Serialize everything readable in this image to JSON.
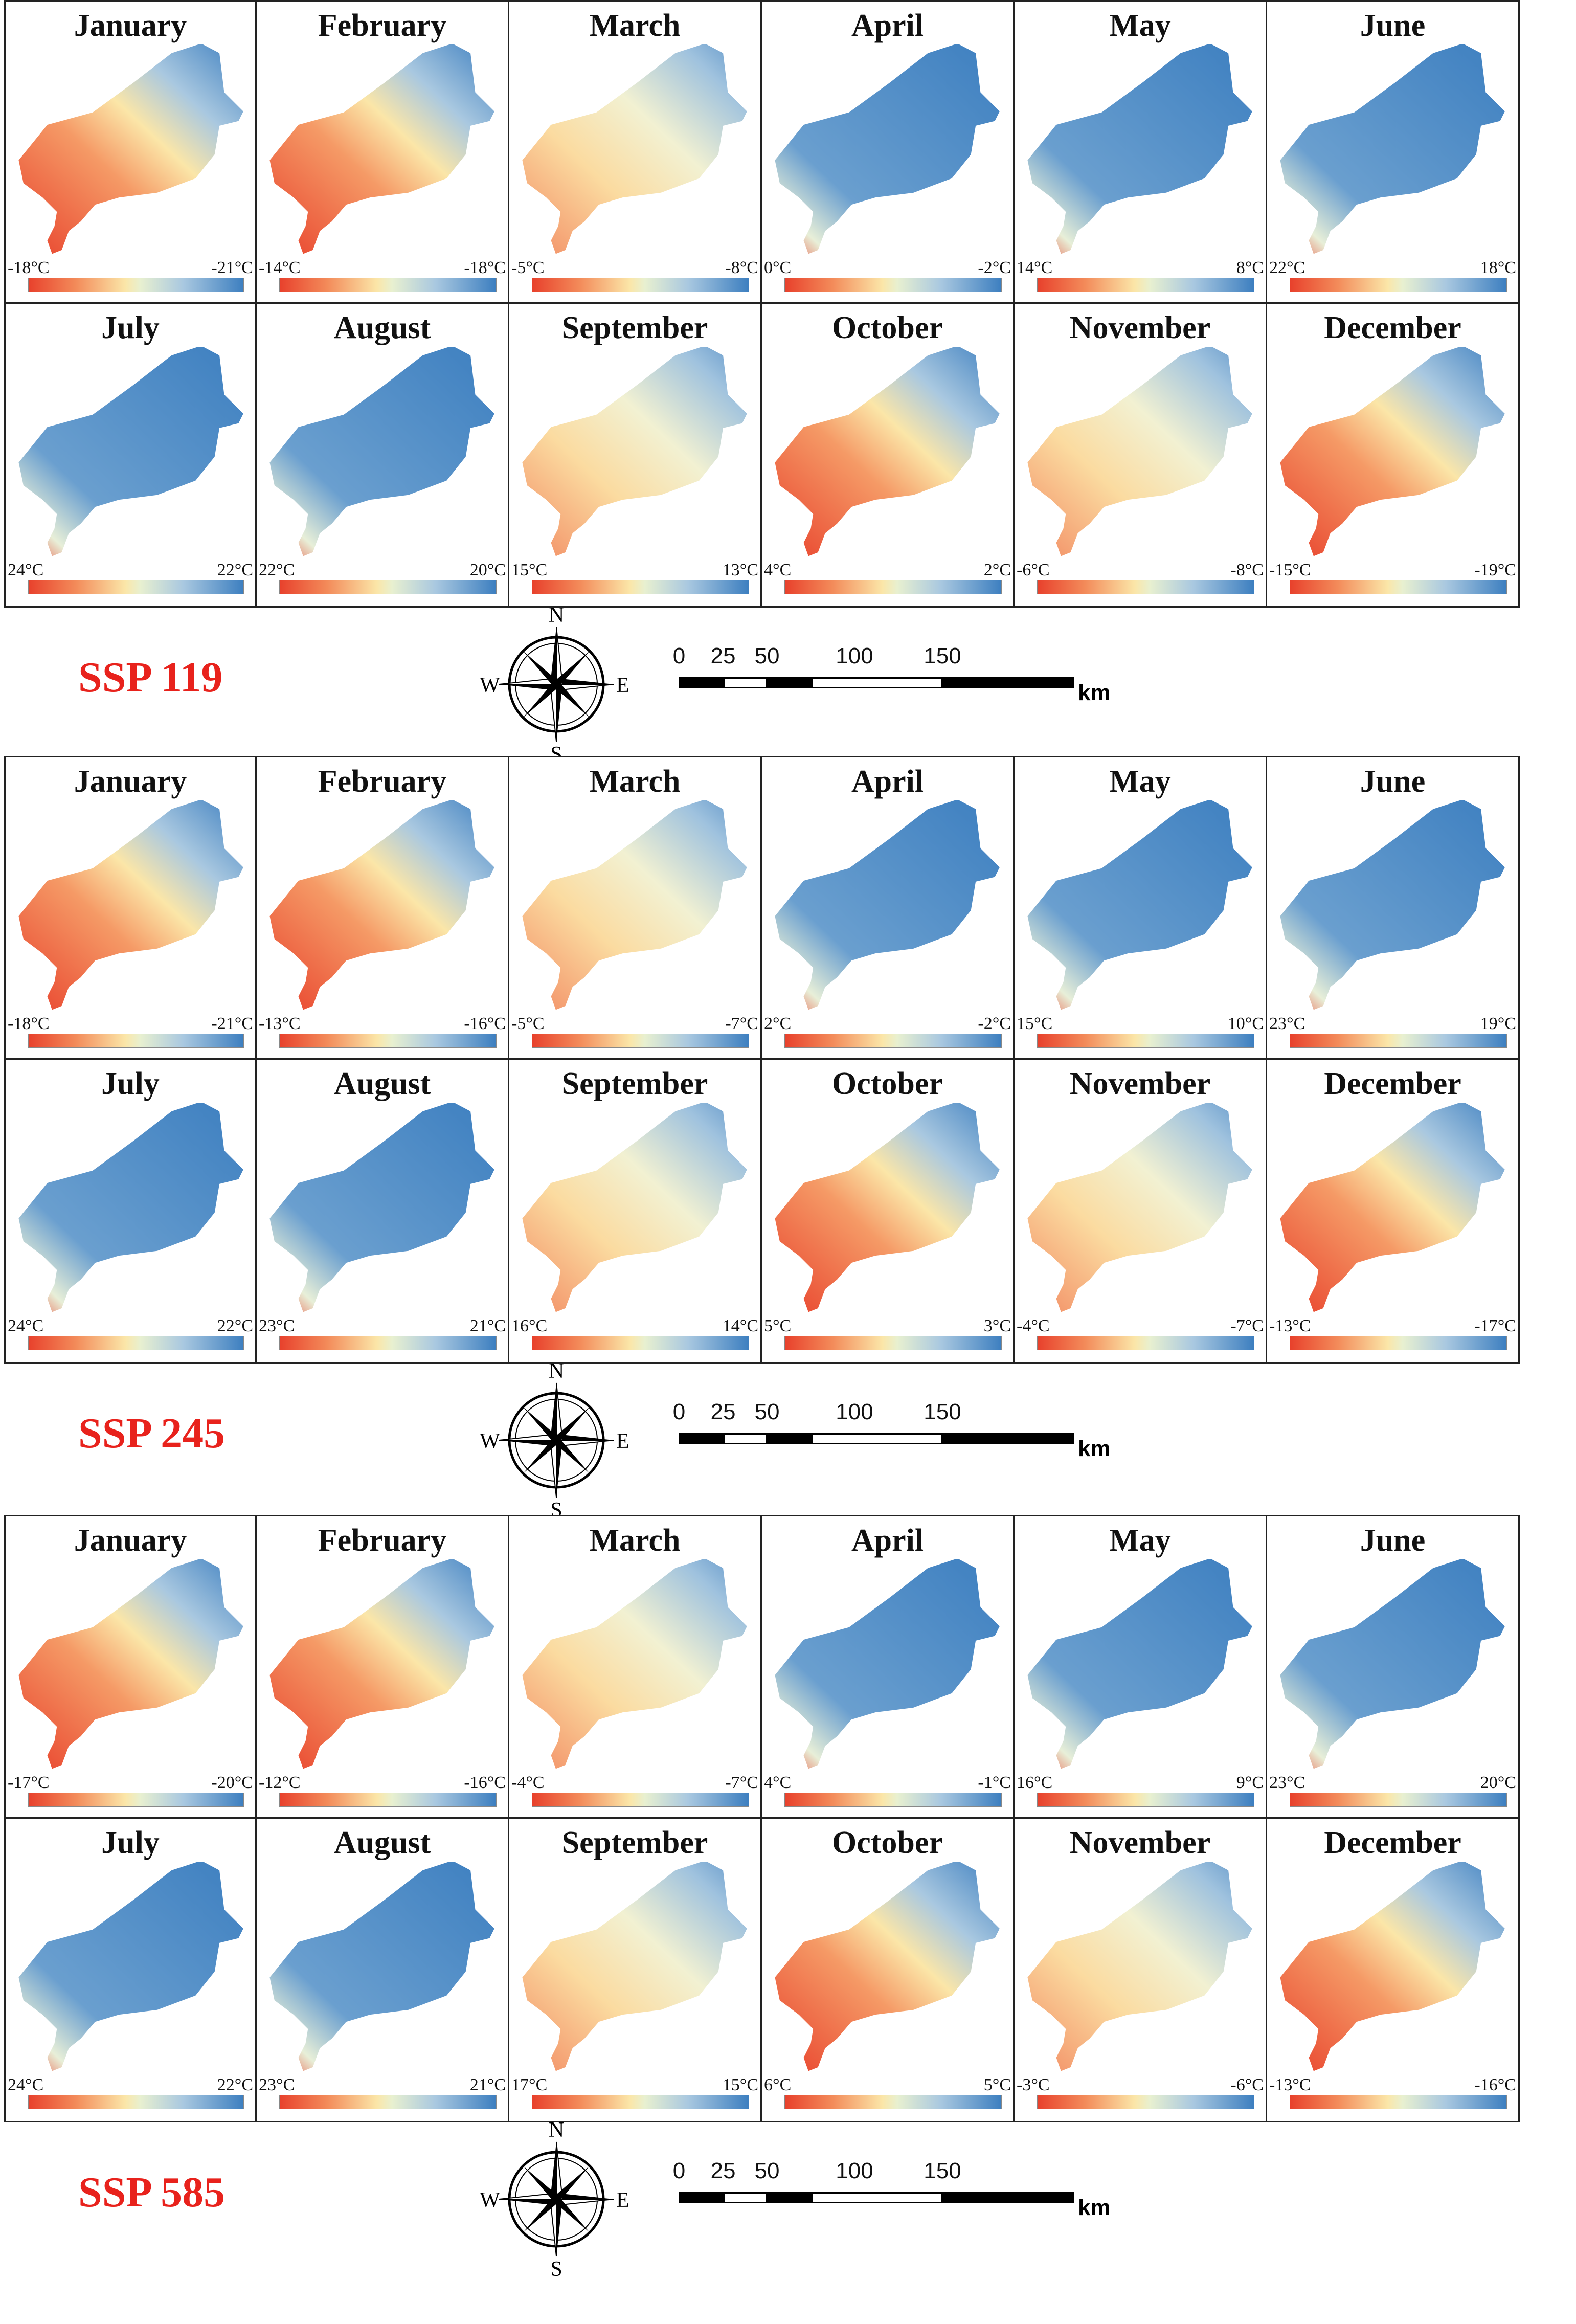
{
  "months": [
    "January",
    "February",
    "March",
    "April",
    "May",
    "June",
    "July",
    "August",
    "September",
    "October",
    "November",
    "December"
  ],
  "scale": {
    "ticks": [
      "0",
      "25",
      "50",
      "100",
      "150"
    ],
    "unit": "km"
  },
  "compass": {
    "north": "N",
    "south": "S",
    "east": "E",
    "west": "W"
  },
  "scenarios": [
    {
      "title": "SSP 119",
      "ranges": [
        [
          "-18°C",
          "-21°C"
        ],
        [
          "-14°C",
          "-18°C"
        ],
        [
          "-5°C",
          "-8°C"
        ],
        [
          "0°C",
          "-2°C"
        ],
        [
          "14°C",
          "8°C"
        ],
        [
          "22°C",
          "18°C"
        ],
        [
          "24°C",
          "22°C"
        ],
        [
          "22°C",
          "20°C"
        ],
        [
          "15°C",
          "13°C"
        ],
        [
          "4°C",
          "2°C"
        ],
        [
          "-6°C",
          "-8°C"
        ],
        [
          "-15°C",
          "-19°C"
        ]
      ]
    },
    {
      "title": "SSP 245",
      "ranges": [
        [
          "-18°C",
          "-21°C"
        ],
        [
          "-13°C",
          "-16°C"
        ],
        [
          "-5°C",
          "-7°C"
        ],
        [
          "2°C",
          "-2°C"
        ],
        [
          "15°C",
          "10°C"
        ],
        [
          "23°C",
          "19°C"
        ],
        [
          "24°C",
          "22°C"
        ],
        [
          "23°C",
          "21°C"
        ],
        [
          "16°C",
          "14°C"
        ],
        [
          "5°C",
          "3°C"
        ],
        [
          "-4°C",
          "-7°C"
        ],
        [
          "-13°C",
          "-17°C"
        ]
      ]
    },
    {
      "title": "SSP 585",
      "ranges": [
        [
          "-17°C",
          "-20°C"
        ],
        [
          "-12°C",
          "-16°C"
        ],
        [
          "-4°C",
          "-7°C"
        ],
        [
          "4°C",
          "-1°C"
        ],
        [
          "16°C",
          "9°C"
        ],
        [
          "23°C",
          "20°C"
        ],
        [
          "24°C",
          "22°C"
        ],
        [
          "23°C",
          "21°C"
        ],
        [
          "17°C",
          "15°C"
        ],
        [
          "6°C",
          "5°C"
        ],
        [
          "-3°C",
          "-6°C"
        ],
        [
          "-13°C",
          "-16°C"
        ]
      ]
    }
  ],
  "colors": {
    "warm": "#e8412c",
    "mid": "#fbe6a8",
    "cool": "#3d7fc0",
    "ssp_label": "#e8221c"
  }
}
